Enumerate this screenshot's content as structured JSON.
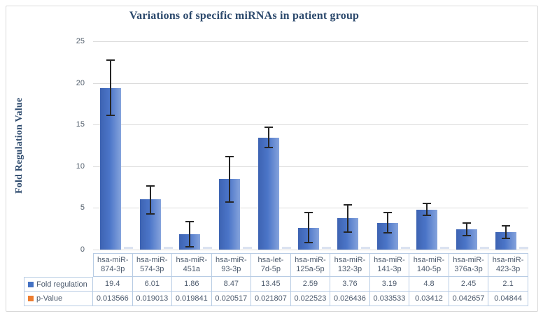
{
  "figure": {
    "title": "Variations of specific miRNAs in patient group",
    "y_axis_title": "Fold Regulation Value"
  },
  "colors": {
    "title_text": "#2d4a6d",
    "bar_fill": "#4472C4",
    "bar_gradient_left": "#3d63b2",
    "bar_gradient_right": "#85a3dc",
    "legend_fold_regulation": "#4472C4",
    "legend_p_value": "#ED7D31",
    "error_bar": "#262626",
    "gridline": "#dcdcdc",
    "table_border": "#b8cce4",
    "table_text": "#4d5b6e",
    "figure_border": "#d9d9d9",
    "p_value_tick": "#dbe3f1"
  },
  "chart_data": {
    "type": "bar",
    "title": "Variations of specific miRNAs in patient group",
    "xlabel": "",
    "ylabel": "Fold Regulation Value",
    "ylim": [
      0,
      25
    ],
    "yticks": [
      0,
      5,
      10,
      15,
      20,
      25
    ],
    "grid": true,
    "legend_position": "left-of-data-table",
    "categories": [
      "hsa-miR-874-3p",
      "hsa-miR-574-3p",
      "hsa-miR-451a",
      "hsa-miR-93-3p",
      "hsa-let-7d-5p",
      "hsa-miR-125a-5p",
      "hsa-miR-132-3p",
      "hsa-miR-141-3p",
      "hsa-miR-140-5p",
      "hsa-miR-376a-3p",
      "hsa-miR-423-3p"
    ],
    "category_lines": [
      [
        "hsa-miR-",
        "874-3p"
      ],
      [
        "hsa-miR-",
        "574-3p"
      ],
      [
        "hsa-miR-",
        "451a"
      ],
      [
        "hsa-miR-",
        "93-3p"
      ],
      [
        "hsa-let-",
        "7d-5p"
      ],
      [
        "hsa-miR-",
        "125a-5p"
      ],
      [
        "hsa-miR-",
        "132-3p"
      ],
      [
        "hsa-miR-",
        "141-3p"
      ],
      [
        "hsa-miR-",
        "140-5p"
      ],
      [
        "hsa-miR-",
        "376a-3p"
      ],
      [
        "hsa-miR-",
        "423-3p"
      ]
    ],
    "series": [
      {
        "name": "Fold regulation",
        "color": "#4472C4",
        "values": [
          19.4,
          6.01,
          1.86,
          8.47,
          13.45,
          2.59,
          3.76,
          3.19,
          4.8,
          2.45,
          2.1
        ],
        "error_bars": [
          3.4,
          1.75,
          1.6,
          2.8,
          1.3,
          1.9,
          1.7,
          1.3,
          0.8,
          0.85,
          0.85
        ]
      },
      {
        "name": "p-Value",
        "color": "#ED7D31",
        "values": [
          0.013566,
          0.019013,
          0.019841,
          0.020517,
          0.021807,
          0.022523,
          0.026436,
          0.033533,
          0.03412,
          0.042657,
          0.04844
        ]
      }
    ]
  }
}
